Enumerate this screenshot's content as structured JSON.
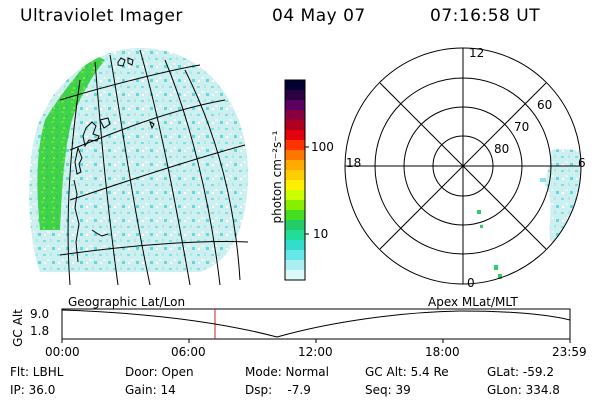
{
  "header": {
    "instrument": "Ultraviolet Imager",
    "date": "04 May 07",
    "time": "07:16:58 UT"
  },
  "colorbar": {
    "label": "photon cm⁻²s⁻¹",
    "ticks": [
      "100",
      "10"
    ],
    "colors": [
      "#000033",
      "#2a0040",
      "#5a0060",
      "#880040",
      "#b00020",
      "#e00010",
      "#ff3300",
      "#ff7700",
      "#ffaa00",
      "#ffcc00",
      "#ffee00",
      "#ccff00",
      "#88ee00",
      "#44dd22",
      "#22cc66",
      "#22dd99",
      "#33ddcc",
      "#66e8e8",
      "#aaf0f0",
      "#ddf8f8"
    ]
  },
  "polar": {
    "mlt_labels": [
      "12",
      "18",
      "6",
      "0"
    ],
    "lat_labels": [
      "60",
      "70",
      "80"
    ]
  },
  "orbit": {
    "left_label": "Geographic Lat/Lon",
    "right_label": "Apex MLat/MLT",
    "axis_label": "GC Alt",
    "y_ticks": [
      "9.0",
      "1.8"
    ],
    "x_ticks": [
      "00:00",
      "06:00",
      "12:00",
      "18:00",
      "23:59"
    ],
    "marker_color": "#cc2222"
  },
  "info": {
    "flt": "Flt: LBHL",
    "ip": "IP: 36.0",
    "door": "Door: Open",
    "gain": "Gain: 14",
    "mode": "Mode: Normal",
    "dsp": "Dsp:    -7.9",
    "gcalt": "GC Alt: 5.4 Re",
    "seq": "Seq: 39",
    "glat": "GLat: -59.2",
    "glon": "GLon: 334.8"
  }
}
